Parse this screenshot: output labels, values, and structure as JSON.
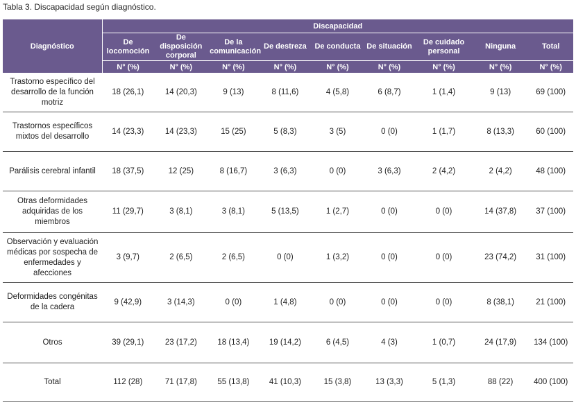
{
  "caption": "Tabla 3. Discapacidad según diagnóstico.",
  "colors": {
    "header_bg": "#6a5a8e",
    "header_text": "#ffffff",
    "row_rule": "#555555"
  },
  "header": {
    "diagnostico": "Diagnóstico",
    "group": "Discapacidad",
    "columns": [
      "De locomoción",
      "De disposición corporal",
      "De la comunicación",
      "De destreza",
      "De conducta",
      "De situación",
      "De cuidado personal",
      "Ninguna",
      "Total"
    ],
    "unit": "N° (%)"
  },
  "rows": [
    {
      "diagnosis": "Trastorno específico del desarrollo de la función motriz",
      "values": [
        "18 (26,1)",
        "14 (20,3)",
        "9 (13)",
        "8 (11,6)",
        "4 (5,8)",
        "6 (8,7)",
        "1 (1,4)",
        "9 (13)",
        "69 (100)"
      ]
    },
    {
      "diagnosis": "Trastornos específicos mixtos del desarrollo",
      "values": [
        "14 (23,3)",
        "14 (23,3)",
        "15 (25)",
        "5 (8,3)",
        "3 (5)",
        "0 (0)",
        "1 (1,7)",
        "8 (13,3)",
        "60 (100)"
      ]
    },
    {
      "diagnosis": "Parálisis cerebral infantil",
      "values": [
        "18 (37,5)",
        "12 (25)",
        "8 (16,7)",
        "3 (6,3)",
        "0 (0)",
        "3 (6,3)",
        "2 (4,2)",
        "2 (4,2)",
        "48 (100)"
      ]
    },
    {
      "diagnosis": "Otras deformidades adquiridas de los miembros",
      "values": [
        "11 (29,7)",
        "3 (8,1)",
        "3 (8,1)",
        "5 (13,5)",
        "1 (2,7)",
        "0 (0)",
        "0 (0)",
        "14 (37,8)",
        "37 (100)"
      ]
    },
    {
      "diagnosis": "Observación y evaluación médicas por sospecha de enfermedades y afecciones",
      "values": [
        "3 (9,7)",
        "2 (6,5)",
        "2 (6,5)",
        "0 (0)",
        "1 (3,2)",
        "0 (0)",
        "0 (0)",
        "23 (74,2)",
        "31 (100)"
      ]
    },
    {
      "diagnosis": "Deformidades congénitas de la cadera",
      "values": [
        "9 (42,9)",
        "3 (14,3)",
        "0 (0)",
        "1 (4,8)",
        "0 (0)",
        "0 (0)",
        "0 (0)",
        "8 (38,1)",
        "21 (100)"
      ]
    },
    {
      "diagnosis": "Otros",
      "values": [
        "39 (29,1)",
        "23 (17,2)",
        "18 (13,4)",
        "19 (14,2)",
        "6 (4,5)",
        "4 (3)",
        "1 (0,7)",
        "24 (17,9)",
        "134 (100)"
      ]
    },
    {
      "diagnosis": "Total",
      "values": [
        "112 (28)",
        "71 (17,8)",
        "55 (13,8)",
        "41 (10,3)",
        "15 (3,8)",
        "13 (3,3)",
        "5 (1,3)",
        "88 (22)",
        "400 (100)"
      ]
    }
  ]
}
